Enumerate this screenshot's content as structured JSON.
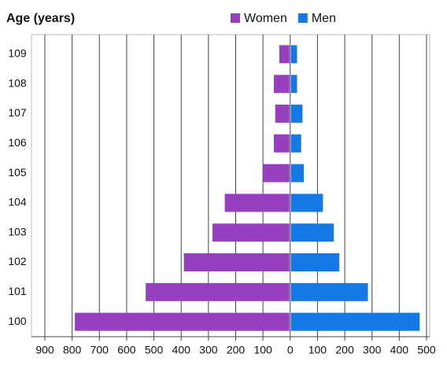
{
  "chart_data": {
    "type": "bar",
    "orientation": "horizontal",
    "stacking": "diverging",
    "title": "Age (years)",
    "categories": [
      "100",
      "101",
      "102",
      "103",
      "104",
      "105",
      "106",
      "107",
      "108",
      "109"
    ],
    "series": [
      {
        "name": "Women",
        "color": "#9640c0",
        "values": [
          -790,
          -530,
          -390,
          -285,
          -240,
          -100,
          -60,
          -55,
          -60,
          -40
        ]
      },
      {
        "name": "Men",
        "color": "#1479e6",
        "values": [
          475,
          285,
          180,
          160,
          120,
          50,
          40,
          45,
          25,
          25
        ]
      }
    ],
    "xlim": [
      -900,
      500
    ],
    "xticks": [
      {
        "value": -900,
        "label": "900"
      },
      {
        "value": -800,
        "label": "800"
      },
      {
        "value": -700,
        "label": "700"
      },
      {
        "value": -600,
        "label": "600"
      },
      {
        "value": -500,
        "label": "500"
      },
      {
        "value": -400,
        "label": "400"
      },
      {
        "value": -300,
        "label": "300"
      },
      {
        "value": -200,
        "label": "200"
      },
      {
        "value": -100,
        "label": "100"
      },
      0,
      100,
      200,
      300,
      400,
      500
    ],
    "grid": true,
    "legend": "top"
  }
}
